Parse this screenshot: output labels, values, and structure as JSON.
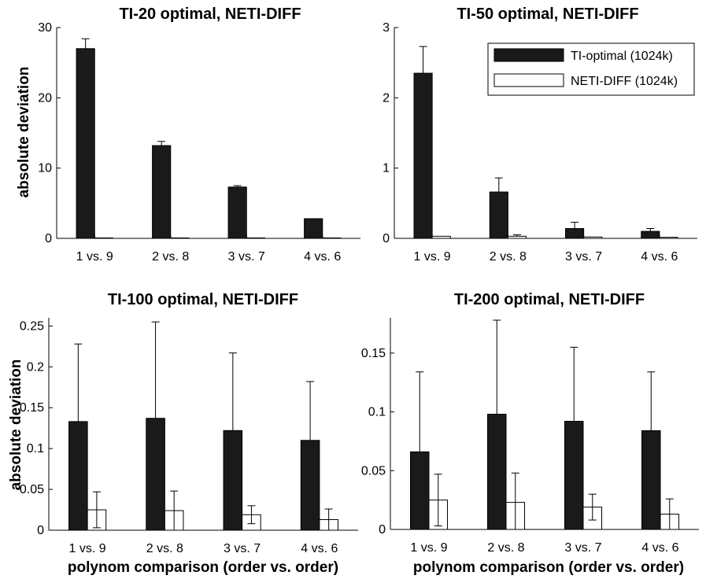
{
  "figure": {
    "ylabel": "absolute deviation",
    "xlabel": "polynom comparison (order vs. order)"
  },
  "legend": {
    "entries": [
      {
        "label": "TI-optimal (1024k)",
        "color": "#1a1a1a"
      },
      {
        "label": "NETI-DIFF (1024k)",
        "color": "#ffffff"
      }
    ]
  },
  "chart_data": [
    {
      "type": "bar",
      "title": "TI-20 optimal, NETI-DIFF",
      "categories": [
        "1 vs. 9",
        "2 vs. 8",
        "3 vs. 7",
        "4 vs. 6"
      ],
      "ylim": [
        0,
        30
      ],
      "yticks": [
        0,
        10,
        20,
        30
      ],
      "ytick_labels": [
        "0",
        "10",
        "20",
        "30"
      ],
      "ylabel": "absolute deviation",
      "xlabel": "",
      "series": [
        {
          "name": "TI-optimal (1024k)",
          "color": "#1a1a1a",
          "values": [
            27.0,
            13.2,
            7.3,
            2.8
          ],
          "errors": [
            1.4,
            0.6,
            0.2,
            0.15
          ]
        },
        {
          "name": "NETI-DIFF (1024k)",
          "color": "#ffffff",
          "values": [
            0.05,
            0.05,
            0.04,
            0.03
          ],
          "errors": [
            0.02,
            0.02,
            0.01,
            0.01
          ]
        }
      ]
    },
    {
      "type": "bar",
      "title": "TI-50 optimal, NETI-DIFF",
      "categories": [
        "1 vs. 9",
        "2 vs. 8",
        "3 vs. 7",
        "4 vs. 6"
      ],
      "ylim": [
        0,
        3
      ],
      "yticks": [
        0,
        1,
        2,
        3
      ],
      "ytick_labels": [
        "0",
        "1",
        "2",
        "3"
      ],
      "ylabel": "",
      "xlabel": "",
      "series": [
        {
          "name": "TI-optimal (1024k)",
          "color": "#1a1a1a",
          "values": [
            2.35,
            0.66,
            0.14,
            0.1
          ],
          "errors": [
            0.38,
            0.2,
            0.09,
            0.04
          ]
        },
        {
          "name": "NETI-DIFF (1024k)",
          "color": "#ffffff",
          "values": [
            0.03,
            0.03,
            0.02,
            0.015
          ],
          "errors": [
            0.015,
            0.02,
            0.005,
            0.005
          ]
        }
      ]
    },
    {
      "type": "bar",
      "title": "TI-100 optimal, NETI-DIFF",
      "categories": [
        "1 vs. 9",
        "2 vs. 8",
        "3 vs. 7",
        "4 vs. 6"
      ],
      "ylim": [
        0,
        0.26
      ],
      "yticks": [
        0,
        0.05,
        0.1,
        0.15,
        0.2,
        0.25
      ],
      "ytick_labels": [
        "0",
        "0.05",
        "0.1",
        "0.15",
        "0.2",
        "0.25"
      ],
      "ylabel": "absolute deviation",
      "xlabel": "polynom comparison (order vs. order)",
      "series": [
        {
          "name": "TI-optimal (1024k)",
          "color": "#1a1a1a",
          "values": [
            0.133,
            0.137,
            0.122,
            0.11
          ],
          "errors": [
            0.095,
            0.118,
            0.095,
            0.072
          ]
        },
        {
          "name": "NETI-DIFF (1024k)",
          "color": "#ffffff",
          "values": [
            0.025,
            0.024,
            0.019,
            0.013
          ],
          "errors": [
            0.022,
            0.024,
            0.011,
            0.013
          ]
        }
      ]
    },
    {
      "type": "bar",
      "title": "TI-200 optimal, NETI-DIFF",
      "categories": [
        "1 vs. 9",
        "2 vs. 8",
        "3 vs. 7",
        "4 vs. 6"
      ],
      "ylim": [
        0,
        0.18
      ],
      "yticks": [
        0,
        0.05,
        0.1,
        0.15
      ],
      "ytick_labels": [
        "0",
        "0.05",
        "0.1",
        "0.15"
      ],
      "ylabel": "",
      "xlabel": "polynom comparison (order vs. order)",
      "series": [
        {
          "name": "TI-optimal (1024k)",
          "color": "#1a1a1a",
          "values": [
            0.066,
            0.098,
            0.092,
            0.084
          ],
          "errors": [
            0.068,
            0.08,
            0.063,
            0.05
          ]
        },
        {
          "name": "NETI-DIFF (1024k)",
          "color": "#ffffff",
          "values": [
            0.025,
            0.023,
            0.019,
            0.013
          ],
          "errors": [
            0.022,
            0.025,
            0.011,
            0.013
          ]
        }
      ]
    }
  ]
}
